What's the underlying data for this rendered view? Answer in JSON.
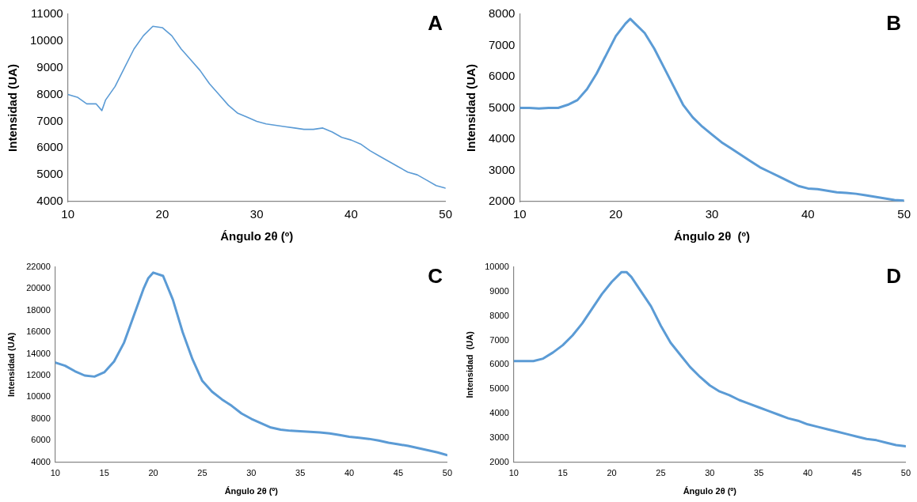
{
  "chart_data": [
    {
      "type": "line",
      "title": "A",
      "xlabel": "Ángulo 2θ (º)",
      "ylabel": "Intensidad (UA)",
      "marker": "none",
      "xlim": [
        10,
        50
      ],
      "ylim": [
        4000,
        11000
      ],
      "xticks": [
        10,
        20,
        30,
        40,
        50
      ],
      "yticks": [
        4000,
        5000,
        6000,
        7000,
        8000,
        9000,
        10000,
        11000
      ],
      "x": [
        10,
        11,
        12,
        13,
        13.6,
        14,
        15,
        16,
        17,
        18,
        19,
        20,
        21,
        22,
        23,
        24,
        25,
        26,
        27,
        28,
        29,
        30,
        31,
        32,
        33,
        34,
        35,
        36,
        37,
        38,
        39,
        40,
        41,
        42,
        43,
        44,
        45,
        46,
        47,
        48,
        49,
        50
      ],
      "series": [
        {
          "color": "#5b9bd5",
          "values": [
            8000,
            7900,
            7650,
            7650,
            7400,
            7800,
            8300,
            9000,
            9700,
            10200,
            10550,
            10500,
            10200,
            9700,
            9300,
            8900,
            8400,
            8000,
            7600,
            7300,
            7150,
            7000,
            6900,
            6850,
            6800,
            6750,
            6700,
            6700,
            6750,
            6600,
            6400,
            6300,
            6150,
            5900,
            5700,
            5500,
            5300,
            5100,
            5000,
            4800,
            4600,
            4500
          ]
        }
      ]
    },
    {
      "type": "line",
      "title": "B",
      "xlabel": "Ángulo 2θ  (º)",
      "ylabel": "Intensidad (UA)",
      "marker": "none",
      "xlim": [
        10,
        50
      ],
      "ylim": [
        2000,
        8000
      ],
      "xticks": [
        10,
        20,
        30,
        40,
        50
      ],
      "yticks": [
        2000,
        3000,
        4000,
        5000,
        6000,
        7000,
        8000
      ],
      "x": [
        10,
        11,
        12,
        13,
        14,
        15,
        16,
        17,
        18,
        19,
        20,
        21,
        21.5,
        22,
        23,
        24,
        25,
        26,
        27,
        28,
        29,
        30,
        31,
        32,
        33,
        34,
        35,
        36,
        37,
        38,
        39,
        40,
        41,
        42,
        43,
        44,
        45,
        46,
        47,
        48,
        49,
        50
      ],
      "series": [
        {
          "color": "#5b9bd5",
          "values": [
            5000,
            5000,
            4980,
            5000,
            5000,
            5100,
            5250,
            5600,
            6100,
            6700,
            7300,
            7700,
            7850,
            7700,
            7400,
            6900,
            6300,
            5700,
            5100,
            4700,
            4400,
            4150,
            3900,
            3700,
            3500,
            3300,
            3100,
            2950,
            2800,
            2650,
            2500,
            2420,
            2400,
            2350,
            2300,
            2280,
            2250,
            2200,
            2150,
            2100,
            2050,
            2030
          ]
        }
      ]
    },
    {
      "type": "line",
      "title": "C",
      "xlabel": "Ángulo 2θ (º)",
      "ylabel": "Intensidad (UA)",
      "marker": "none",
      "xlim": [
        10,
        50
      ],
      "ylim": [
        4000,
        22000
      ],
      "xticks": [
        10,
        15,
        20,
        25,
        30,
        35,
        40,
        45,
        50
      ],
      "yticks": [
        4000,
        6000,
        8000,
        10000,
        12000,
        14000,
        16000,
        18000,
        20000,
        22000
      ],
      "x": [
        10,
        11,
        12,
        13,
        14,
        15,
        16,
        17,
        18,
        19,
        19.5,
        20,
        21,
        22,
        23,
        24,
        25,
        26,
        27,
        28,
        29,
        30,
        31,
        32,
        33,
        34,
        35,
        36,
        37,
        38,
        39,
        40,
        41,
        42,
        43,
        44,
        45,
        46,
        47,
        48,
        49,
        50
      ],
      "series": [
        {
          "color": "#5b9bd5",
          "values": [
            13200,
            12900,
            12400,
            12000,
            11900,
            12300,
            13300,
            15000,
            17500,
            20000,
            21000,
            21500,
            21200,
            19000,
            16000,
            13500,
            11500,
            10500,
            9800,
            9200,
            8500,
            8000,
            7600,
            7200,
            7000,
            6900,
            6850,
            6800,
            6750,
            6650,
            6500,
            6350,
            6250,
            6150,
            6000,
            5800,
            5650,
            5500,
            5300,
            5100,
            4900,
            4650
          ]
        }
      ]
    },
    {
      "type": "line",
      "title": "D",
      "xlabel": "Ángulo 2θ (º)",
      "ylabel": "Intensidad  (UA)",
      "marker": "none",
      "xlim": [
        10,
        50
      ],
      "ylim": [
        2000,
        10000
      ],
      "xticks": [
        10,
        15,
        20,
        25,
        30,
        35,
        40,
        45,
        50
      ],
      "yticks": [
        2000,
        3000,
        4000,
        5000,
        6000,
        7000,
        8000,
        9000,
        10000
      ],
      "x": [
        10,
        11,
        12,
        13,
        14,
        15,
        16,
        17,
        18,
        19,
        20,
        21,
        21.5,
        22,
        23,
        24,
        25,
        26,
        27,
        28,
        29,
        30,
        31,
        32,
        33,
        34,
        35,
        36,
        37,
        38,
        39,
        40,
        41,
        42,
        43,
        44,
        45,
        46,
        47,
        48,
        49,
        50
      ],
      "series": [
        {
          "color": "#5b9bd5",
          "values": [
            6150,
            6150,
            6150,
            6250,
            6500,
            6800,
            7200,
            7700,
            8300,
            8900,
            9400,
            9800,
            9800,
            9600,
            9000,
            8400,
            7600,
            6900,
            6400,
            5900,
            5500,
            5150,
            4900,
            4750,
            4550,
            4400,
            4250,
            4100,
            3950,
            3800,
            3700,
            3550,
            3450,
            3350,
            3250,
            3150,
            3050,
            2950,
            2900,
            2800,
            2700,
            2650
          ]
        }
      ]
    }
  ]
}
